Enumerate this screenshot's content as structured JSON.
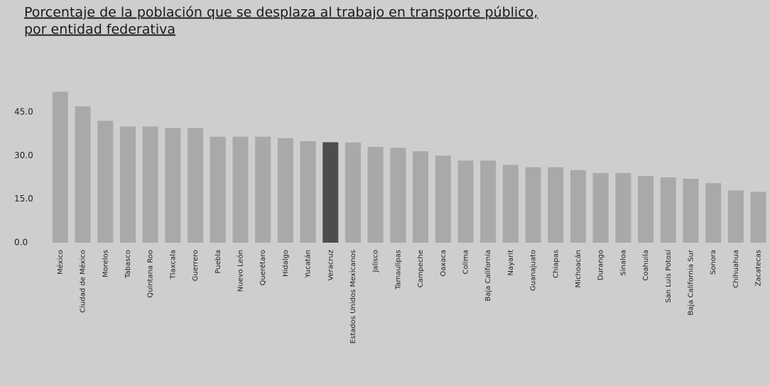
{
  "chart_data": {
    "type": "bar",
    "title": [
      "Porcentaje de la población que se desplaza al trabajo en transporte público,",
      "por entidad federativa"
    ],
    "categories": [
      "México",
      "Ciudad de México",
      "Morelos",
      "Tabasco",
      "Quintana Roo",
      "Tlaxcala",
      "Guerrero",
      "Puebla",
      "Nuevo León",
      "Querétaro",
      "Hidalgo",
      "Yucatán",
      "Veracruz",
      "Estados Unidos Mexicanos",
      "Jalisco",
      "Tamaulipas",
      "Campeche",
      "Oaxaca",
      "Colima",
      "Baja California",
      "Nayarit",
      "Guanajuato",
      "Chiapas",
      "Michoacán",
      "Durango",
      "Sinaloa",
      "Coahuila",
      "San Luis Potosí",
      "Baja California Sur",
      "Sonora",
      "Chihuahua",
      "Zacatecas"
    ],
    "values": [
      52,
      47,
      42,
      40,
      40,
      39.5,
      39.5,
      36.5,
      36.5,
      36.5,
      36,
      35,
      34.6,
      34.5,
      33,
      32.7,
      31.5,
      30,
      28.3,
      28.3,
      26.8,
      26,
      26,
      25,
      24,
      24,
      23,
      22.5,
      22,
      20.5,
      18,
      17.5
    ],
    "colors": [
      "#a9a9a9",
      "#a9a9a9",
      "#a9a9a9",
      "#a9a9a9",
      "#a9a9a9",
      "#a9a9a9",
      "#a9a9a9",
      "#a9a9a9",
      "#a9a9a9",
      "#a9a9a9",
      "#a9a9a9",
      "#a9a9a9",
      "#4d4d4d",
      "#a9a9a9",
      "#a9a9a9",
      "#a9a9a9",
      "#a9a9a9",
      "#a9a9a9",
      "#a9a9a9",
      "#a9a9a9",
      "#a9a9a9",
      "#a9a9a9",
      "#a9a9a9",
      "#a9a9a9",
      "#a9a9a9",
      "#a9a9a9",
      "#a9a9a9",
      "#a9a9a9",
      "#a9a9a9",
      "#a9a9a9",
      "#a9a9a9",
      "#a9a9a9"
    ],
    "ylim": [
      0,
      55
    ],
    "yticks": [
      {
        "value": 0,
        "label": "0.0"
      },
      {
        "value": 15,
        "label": "15.0"
      },
      {
        "value": 30,
        "label": "30.0"
      },
      {
        "value": 45,
        "label": "45.0"
      }
    ],
    "grid": false
  }
}
